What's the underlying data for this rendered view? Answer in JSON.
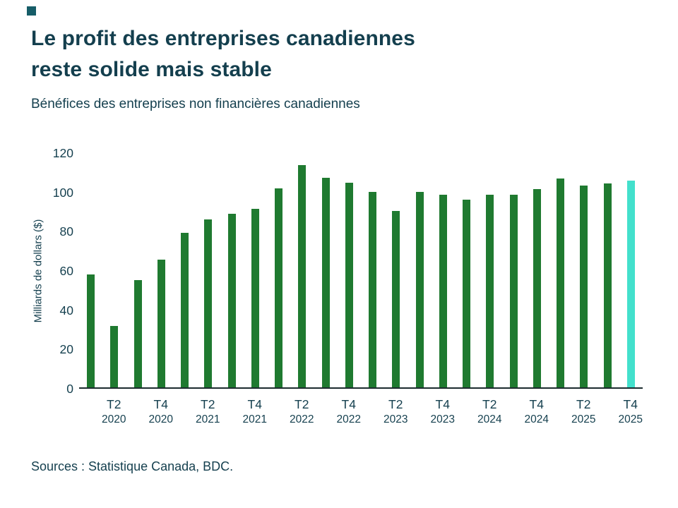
{
  "brand": {
    "logo_color": "#165d68",
    "text_color": "#143f4e"
  },
  "header": {
    "title_line1": "Le profit des entreprises canadiennes",
    "title_line2": "reste solide mais stable",
    "subtitle": "Bénéfices des entreprises non financières canadiennes"
  },
  "chart_data": {
    "type": "bar",
    "title": "Bénéfices des entreprises non financières canadiennes",
    "xlabel": "",
    "ylabel": "Milliards de dollars ($)",
    "ylim": [
      0,
      120
    ],
    "yticks": [
      0,
      20,
      40,
      60,
      80,
      100,
      120
    ],
    "grid": false,
    "legend": "none",
    "bar_color": "#1f7a30",
    "highlight_color": "#43e0cc",
    "highlight_index": 23,
    "categories": [
      "T1 2020",
      "T2 2020",
      "T3 2020",
      "T4 2020",
      "T1 2021",
      "T2 2021",
      "T3 2021",
      "T4 2021",
      "T1 2022",
      "T2 2022",
      "T3 2022",
      "T4 2022",
      "T1 2023",
      "T2 2023",
      "T3 2023",
      "T4 2023",
      "T1 2024",
      "T2 2024",
      "T3 2024",
      "T4 2024",
      "T1 2025",
      "T2 2025",
      "T3 2025",
      "T4 2025"
    ],
    "values": [
      58,
      31.5,
      55,
      65.5,
      79,
      86,
      89,
      91.5,
      102,
      114,
      107.5,
      105,
      100,
      90.5,
      100,
      98.5,
      96,
      98.5,
      98.5,
      101.5,
      107,
      103.5,
      104.5,
      106
    ],
    "xticks": [
      {
        "index": 1,
        "quarter": "T2",
        "year": "2020"
      },
      {
        "index": 3,
        "quarter": "T4",
        "year": "2020"
      },
      {
        "index": 5,
        "quarter": "T2",
        "year": "2021"
      },
      {
        "index": 7,
        "quarter": "T4",
        "year": "2021"
      },
      {
        "index": 9,
        "quarter": "T2",
        "year": "2022"
      },
      {
        "index": 11,
        "quarter": "T4",
        "year": "2022"
      },
      {
        "index": 13,
        "quarter": "T2",
        "year": "2023"
      },
      {
        "index": 15,
        "quarter": "T4",
        "year": "2023"
      },
      {
        "index": 17,
        "quarter": "T2",
        "year": "2024"
      },
      {
        "index": 19,
        "quarter": "T4",
        "year": "2024"
      },
      {
        "index": 21,
        "quarter": "T2",
        "year": "2025"
      },
      {
        "index": 23,
        "quarter": "T4",
        "year": "2025"
      }
    ]
  },
  "footer": {
    "source": "Sources : Statistique Canada, BDC."
  }
}
